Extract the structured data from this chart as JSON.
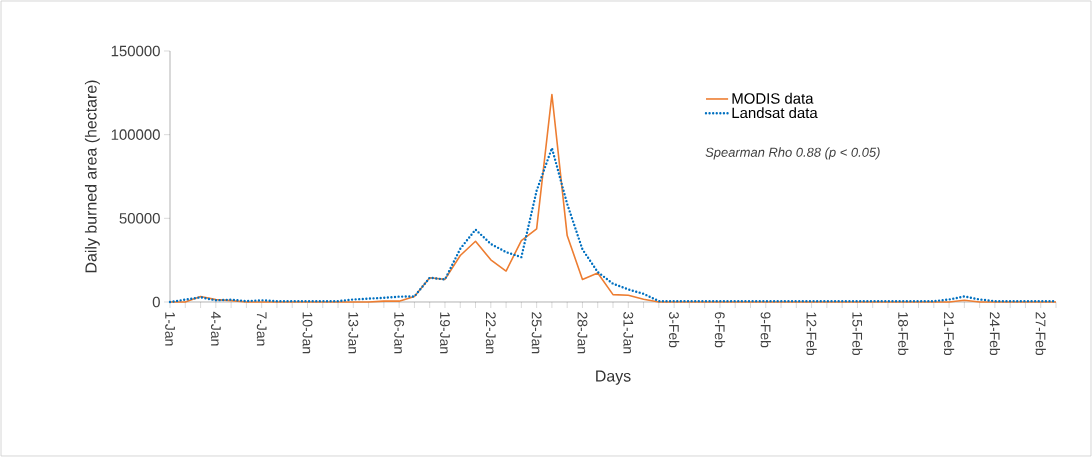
{
  "chart_data": {
    "type": "line",
    "xlabel": "Days",
    "ylabel": "Daily burned area (hectare)",
    "categories": [
      "1-Jan",
      null,
      null,
      "4-Jan",
      null,
      null,
      "7-Jan",
      null,
      null,
      "10-Jan",
      null,
      null,
      "13-Jan",
      null,
      null,
      "16-Jan",
      null,
      null,
      "19-Jan",
      null,
      null,
      "22-Jan",
      null,
      null,
      "25-Jan",
      null,
      null,
      "28-Jan",
      null,
      null,
      "31-Jan",
      null,
      null,
      "3-Feb",
      null,
      null,
      "6-Feb",
      null,
      null,
      "9-Feb",
      null,
      null,
      "12-Feb",
      null,
      null,
      "15-Feb",
      null,
      null,
      "18-Feb",
      null,
      null,
      "21-Feb",
      null,
      null,
      "24-Feb",
      null,
      null,
      "27-Feb",
      null
    ],
    "series": [
      {
        "name": "MODIS data",
        "color": "#ed7d31",
        "line_style": "solid",
        "values": [
          0,
          0,
          3300,
          1400,
          800,
          0,
          0,
          0,
          0,
          0,
          0,
          0,
          0,
          0,
          500,
          500,
          3300,
          14500,
          13500,
          27800,
          36300,
          25200,
          18500,
          36700,
          43700,
          124000,
          39700,
          13500,
          17300,
          4400,
          4000,
          1600,
          0,
          0,
          0,
          0,
          0,
          0,
          0,
          0,
          0,
          0,
          0,
          0,
          0,
          0,
          0,
          0,
          0,
          0,
          0,
          0,
          1000,
          0,
          0,
          0,
          0,
          0,
          0
        ]
      },
      {
        "name": "Landsat data",
        "color": "#0070c0",
        "line_style": "dotted",
        "values": [
          0,
          1400,
          2800,
          1000,
          1400,
          500,
          1000,
          500,
          500,
          500,
          500,
          500,
          1500,
          2000,
          2500,
          3200,
          3300,
          14500,
          13500,
          31800,
          43300,
          34700,
          29800,
          26800,
          66500,
          92000,
          58600,
          31400,
          17900,
          10900,
          7500,
          4900,
          500,
          500,
          500,
          500,
          500,
          500,
          500,
          500,
          500,
          500,
          500,
          500,
          500,
          500,
          500,
          500,
          500,
          500,
          500,
          1500,
          3300,
          1500,
          500,
          500,
          500,
          500,
          500
        ]
      }
    ],
    "ylim": [
      0,
      150000
    ],
    "yticks": [
      0,
      50000,
      100000,
      150000
    ],
    "legend": "top right",
    "marker": "none",
    "grid": false,
    "annotations": [
      "Spearman Rho 0.88 (p < 0.05)"
    ]
  }
}
